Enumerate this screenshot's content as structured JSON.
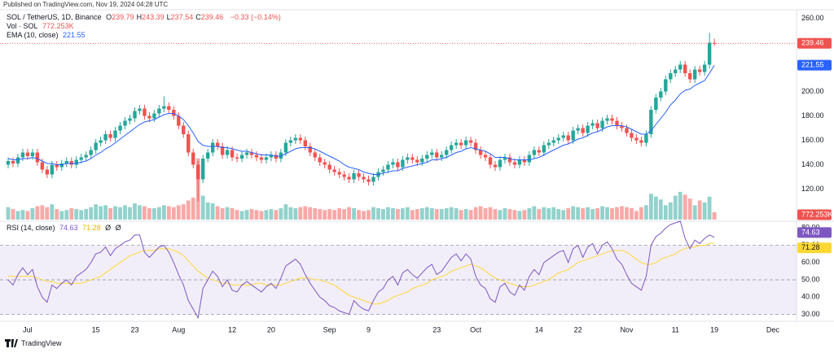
{
  "header": "Published on TradingView.com, Nov 19, 2024 04:28 UTC",
  "footer": "TradingView",
  "legend": {
    "symbol": "SOL / TetherUS, 1D, Binance",
    "ohlc": [
      {
        "k": "O",
        "v": "239.79"
      },
      {
        "k": "H",
        "v": "243.39"
      },
      {
        "k": "L",
        "v": "237.54"
      },
      {
        "k": "C",
        "v": "239.46"
      }
    ],
    "change": "−0.33 (−0.14%)",
    "volume_name": "Vol · SOL",
    "volume_value": "772.253K",
    "ema_name": "EMA (10, close)",
    "ema_value": "221.55",
    "rsi_name": "RSI (14, close)",
    "rsi_extra": [
      "Ø",
      "Ø"
    ]
  },
  "chart_data": {
    "type": "candlestick",
    "up_color": "#26a69a",
    "down_color": "#ef5350",
    "categories": [
      null,
      null,
      null,
      null,
      "Jul",
      null,
      null,
      null,
      null,
      null,
      null,
      null,
      null,
      null,
      null,
      null,
      null,
      null,
      "15",
      null,
      null,
      null,
      null,
      null,
      null,
      null,
      "23",
      null,
      null,
      null,
      null,
      null,
      null,
      null,
      null,
      "Aug",
      null,
      null,
      null,
      null,
      null,
      null,
      null,
      null,
      null,
      null,
      "12",
      null,
      null,
      null,
      null,
      null,
      null,
      null,
      "20",
      null,
      null,
      null,
      null,
      null,
      null,
      null,
      null,
      null,
      null,
      null,
      "Sep",
      null,
      null,
      null,
      null,
      null,
      null,
      null,
      "9",
      null,
      null,
      null,
      null,
      null,
      null,
      null,
      null,
      null,
      null,
      null,
      null,
      null,
      "23",
      null,
      null,
      null,
      null,
      null,
      null,
      null,
      "Oct",
      null,
      null,
      null,
      null,
      null,
      null,
      null,
      null,
      null,
      null,
      null,
      null,
      "14",
      null,
      null,
      null,
      null,
      null,
      null,
      null,
      "22",
      null,
      null,
      null,
      null,
      null,
      null,
      null,
      null,
      null,
      "Nov",
      null,
      null,
      null,
      null,
      null,
      null,
      null,
      null,
      null,
      "11",
      null,
      null,
      null,
      null,
      null,
      null,
      null,
      "19",
      null,
      null,
      null,
      null,
      null,
      null,
      null,
      null,
      null,
      null,
      null,
      "Dec"
    ],
    "open": [
      140,
      143,
      141,
      146,
      150,
      147,
      150,
      142,
      136,
      132,
      140,
      138,
      141,
      143,
      140,
      144,
      146,
      148,
      152,
      158,
      160,
      165,
      162,
      168,
      172,
      176,
      178,
      184,
      186,
      180,
      178,
      182,
      186,
      188,
      185,
      180,
      172,
      165,
      150,
      140,
      128,
      145,
      150,
      158,
      155,
      148,
      152,
      146,
      145,
      148,
      150,
      148,
      146,
      144,
      146,
      148,
      145,
      150,
      158,
      160,
      162,
      160,
      155,
      150,
      146,
      142,
      140,
      136,
      134,
      132,
      130,
      128,
      133,
      130,
      128,
      126,
      130,
      134,
      136,
      140,
      142,
      138,
      144,
      146,
      144,
      142,
      145,
      148,
      150,
      146,
      148,
      152,
      156,
      158,
      156,
      160,
      158,
      152,
      148,
      146,
      140,
      138,
      144,
      146,
      142,
      140,
      144,
      142,
      148,
      152,
      150,
      156,
      158,
      160,
      162,
      164,
      160,
      168,
      170,
      166,
      172,
      174,
      170,
      176,
      178,
      176,
      172,
      170,
      166,
      162,
      160,
      158,
      165,
      185,
      195,
      200,
      210,
      215,
      218,
      222,
      215,
      210,
      218,
      216,
      222,
      239.79,
      null,
      null,
      null,
      null,
      null,
      null,
      null,
      null,
      null,
      null,
      null,
      null
    ],
    "high": [
      146,
      146,
      149,
      153,
      153,
      153,
      153,
      145,
      139,
      143,
      143,
      144,
      146,
      146,
      147,
      149,
      151,
      155,
      161,
      163,
      168,
      168,
      171,
      175,
      179,
      181,
      187,
      189,
      189,
      183,
      185,
      189,
      196,
      191,
      188,
      183,
      175,
      168,
      153,
      143,
      148,
      153,
      161,
      161,
      158,
      155,
      155,
      149,
      151,
      153,
      153,
      151,
      149,
      149,
      151,
      151,
      153,
      161,
      163,
      165,
      165,
      163,
      158,
      153,
      149,
      145,
      143,
      139,
      137,
      135,
      133,
      136,
      136,
      133,
      131,
      133,
      137,
      139,
      143,
      145,
      145,
      147,
      149,
      149,
      147,
      148,
      151,
      153,
      153,
      151,
      155,
      159,
      161,
      161,
      163,
      163,
      161,
      155,
      151,
      149,
      143,
      147,
      149,
      149,
      145,
      147,
      147,
      151,
      155,
      155,
      159,
      161,
      163,
      165,
      167,
      167,
      171,
      173,
      173,
      175,
      177,
      177,
      179,
      181,
      181,
      179,
      175,
      173,
      169,
      165,
      163,
      168,
      188,
      198,
      203,
      213,
      218,
      221,
      225,
      225,
      218,
      221,
      221,
      225,
      248,
      243.39,
      null,
      null,
      null,
      null,
      null,
      null,
      null,
      null,
      null,
      null,
      null,
      null
    ],
    "low": [
      137,
      138,
      138,
      143,
      144,
      144,
      139,
      133,
      129,
      129,
      135,
      135,
      138,
      137,
      137,
      141,
      143,
      145,
      149,
      155,
      157,
      159,
      159,
      165,
      169,
      173,
      175,
      181,
      177,
      175,
      175,
      179,
      183,
      182,
      177,
      169,
      162,
      147,
      137,
      110,
      125,
      142,
      147,
      152,
      145,
      145,
      143,
      142,
      142,
      145,
      145,
      143,
      141,
      141,
      143,
      142,
      142,
      147,
      155,
      157,
      157,
      152,
      147,
      143,
      139,
      137,
      133,
      131,
      129,
      127,
      125,
      125,
      127,
      125,
      123,
      123,
      127,
      131,
      133,
      137,
      135,
      135,
      141,
      141,
      139,
      139,
      142,
      145,
      143,
      143,
      145,
      149,
      153,
      153,
      153,
      155,
      149,
      145,
      143,
      137,
      135,
      135,
      141,
      139,
      137,
      137,
      139,
      139,
      145,
      147,
      147,
      153,
      155,
      157,
      159,
      157,
      157,
      165,
      163,
      163,
      169,
      167,
      167,
      173,
      173,
      169,
      167,
      163,
      159,
      157,
      155,
      155,
      162,
      182,
      192,
      197,
      207,
      212,
      215,
      212,
      207,
      207,
      213,
      213,
      219,
      237.54,
      null,
      null,
      null,
      null,
      null,
      null,
      null,
      null,
      null,
      null,
      null,
      null
    ],
    "close": [
      143,
      141,
      146,
      150,
      147,
      150,
      142,
      136,
      132,
      140,
      138,
      141,
      143,
      140,
      144,
      146,
      148,
      152,
      158,
      160,
      165,
      162,
      168,
      172,
      176,
      178,
      184,
      186,
      180,
      178,
      182,
      186,
      188,
      185,
      180,
      172,
      165,
      150,
      140,
      128,
      145,
      150,
      158,
      155,
      148,
      152,
      146,
      145,
      148,
      150,
      148,
      146,
      144,
      146,
      148,
      145,
      150,
      158,
      160,
      162,
      160,
      155,
      150,
      146,
      142,
      140,
      136,
      134,
      132,
      130,
      128,
      133,
      130,
      128,
      126,
      130,
      134,
      136,
      140,
      142,
      138,
      144,
      146,
      144,
      142,
      145,
      148,
      150,
      146,
      148,
      152,
      156,
      158,
      156,
      160,
      158,
      152,
      148,
      146,
      140,
      138,
      144,
      146,
      142,
      140,
      144,
      142,
      148,
      152,
      150,
      156,
      158,
      160,
      162,
      164,
      160,
      168,
      170,
      166,
      172,
      174,
      170,
      176,
      178,
      176,
      172,
      170,
      166,
      162,
      160,
      158,
      165,
      185,
      195,
      200,
      210,
      215,
      218,
      222,
      215,
      210,
      218,
      216,
      222,
      240,
      239.46,
      null,
      null,
      null,
      null,
      null,
      null,
      null,
      null,
      null,
      null,
      null,
      null
    ],
    "ylim": [
      95,
      265
    ],
    "yticks": [
      {
        "value": 120,
        "label": "120.00"
      },
      {
        "value": 140,
        "label": "140.00"
      },
      {
        "value": 160,
        "label": "160.00"
      },
      {
        "value": 180,
        "label": "180.00"
      },
      {
        "value": 200,
        "label": "200.00"
      },
      {
        "value": 220,
        "label": "220.00"
      },
      {
        "value": 240,
        "label": "240.00"
      },
      {
        "value": 260,
        "label": "260.00"
      }
    ],
    "grid": false,
    "ema": {
      "color": "#2962ff",
      "values": [
        145,
        144,
        144,
        145,
        145,
        146,
        145,
        143,
        141,
        141,
        140,
        140,
        141,
        141,
        141,
        142,
        143,
        145,
        148,
        150,
        153,
        155,
        158,
        161,
        164,
        167,
        170,
        173,
        175,
        176,
        177,
        179,
        181,
        182,
        182,
        180,
        177,
        172,
        166,
        159,
        156,
        155,
        155,
        155,
        154,
        154,
        153,
        152,
        151,
        151,
        150,
        149,
        148,
        148,
        148,
        147,
        147,
        149,
        151,
        153,
        154,
        154,
        154,
        153,
        151,
        149,
        147,
        145,
        143,
        140,
        138,
        137,
        136,
        134,
        133,
        132,
        132,
        133,
        134,
        135,
        135,
        137,
        138,
        139,
        140,
        141,
        142,
        144,
        144,
        145,
        146,
        148,
        150,
        151,
        153,
        154,
        153,
        152,
        151,
        149,
        146,
        146,
        146,
        145,
        144,
        144,
        144,
        144,
        145,
        146,
        148,
        150,
        152,
        154,
        156,
        157,
        159,
        161,
        162,
        164,
        166,
        167,
        169,
        171,
        172,
        172,
        172,
        171,
        169,
        167,
        165,
        165,
        168,
        173,
        178,
        183,
        189,
        193,
        198,
        201,
        202,
        205,
        207,
        209,
        215,
        221.55,
        null,
        null,
        null,
        null,
        null,
        null,
        null,
        null,
        null,
        null,
        null,
        null
      ]
    },
    "volume": {
      "ylim": [
        0,
        8500
      ],
      "values": [
        1300,
        1100,
        900,
        1000,
        900,
        1200,
        1400,
        1500,
        1300,
        1600,
        1100,
        900,
        1000,
        1200,
        1100,
        1000,
        1100,
        1300,
        1600,
        1400,
        1500,
        1200,
        1400,
        1300,
        1500,
        1300,
        1700,
        1500,
        1400,
        1200,
        1200,
        1300,
        1500,
        1400,
        1300,
        1500,
        1600,
        2000,
        2300,
        6400,
        2500,
        1800,
        1700,
        1400,
        1200,
        1300,
        1200,
        1000,
        900,
        1000,
        1100,
        1000,
        900,
        1000,
        1100,
        1000,
        1200,
        1600,
        1300,
        1200,
        1300,
        1400,
        1300,
        1200,
        1100,
        1000,
        1100,
        1000,
        1200,
        1100,
        1300,
        1200,
        1000,
        900,
        1000,
        1300,
        1200,
        1100,
        1300,
        1200,
        1100,
        1200,
        1300,
        1000,
        1100,
        1200,
        1300,
        1200,
        1100,
        1100,
        1200,
        1300,
        1200,
        1000,
        1100,
        1000,
        1300,
        1400,
        1200,
        1300,
        1100,
        1000,
        1200,
        1100,
        1000,
        900,
        1000,
        1200,
        1400,
        1100,
        1300,
        1200,
        1300,
        1100,
        1000,
        1200,
        1400,
        1300,
        1200,
        1300,
        1100,
        1200,
        1400,
        1300,
        1200,
        1300,
        1400,
        1300,
        1200,
        900,
        1300,
        1500,
        2700,
        2400,
        2100,
        1500,
        1800,
        2500,
        2900,
        2600,
        2200,
        1500,
        2000,
        1800,
        2400,
        772.253,
        null,
        null,
        null,
        null,
        null,
        null,
        null,
        null,
        null,
        null,
        null,
        null
      ]
    },
    "rsi": {
      "color": "#7e57c2",
      "ma_color": "#fdd835",
      "ylim": [
        26,
        83
      ],
      "yticks": [
        {
          "value": 30,
          "label": "30.00"
        },
        {
          "value": 40,
          "label": "40.00"
        },
        {
          "value": 50,
          "label": "50.00"
        },
        {
          "value": 60,
          "label": "60.00"
        },
        {
          "value": 70,
          "label": "70.00"
        },
        {
          "value": 80,
          "label": "80.00"
        }
      ],
      "levels": [
        70,
        50,
        30
      ],
      "values": [
        50,
        47,
        53,
        57,
        53,
        56,
        46,
        40,
        37,
        47,
        45,
        48,
        50,
        47,
        52,
        54,
        56,
        60,
        65,
        66,
        69,
        64,
        68,
        70,
        72,
        73,
        76,
        76,
        66,
        63,
        66,
        69,
        70,
        66,
        60,
        53,
        47,
        38,
        33,
        28,
        45,
        50,
        55,
        52,
        46,
        50,
        44,
        43,
        47,
        49,
        47,
        45,
        43,
        46,
        48,
        45,
        51,
        58,
        60,
        62,
        59,
        53,
        48,
        44,
        40,
        38,
        35,
        34,
        32,
        31,
        30,
        38,
        35,
        33,
        32,
        38,
        43,
        45,
        50,
        52,
        47,
        54,
        56,
        53,
        51,
        54,
        57,
        59,
        53,
        55,
        59,
        63,
        65,
        61,
        65,
        62,
        52,
        47,
        45,
        39,
        37,
        46,
        48,
        43,
        41,
        47,
        44,
        52,
        56,
        53,
        60,
        62,
        64,
        66,
        67,
        60,
        68,
        70,
        63,
        69,
        71,
        65,
        70,
        72,
        68,
        62,
        59,
        53,
        48,
        46,
        44,
        52,
        70,
        75,
        77,
        80,
        82,
        83,
        84,
        74,
        68,
        73,
        71,
        74,
        76,
        74.63,
        null,
        null,
        null,
        null,
        null,
        null,
        null,
        null,
        null,
        null,
        null,
        null
      ],
      "ma_values": [
        52,
        52,
        52,
        52,
        52,
        52,
        51,
        50,
        49,
        49,
        48,
        48,
        48,
        48,
        48,
        48,
        49,
        50,
        51,
        52,
        54,
        56,
        58,
        60,
        62,
        64,
        65,
        66,
        67,
        67,
        67,
        68,
        68,
        68,
        67,
        66,
        64,
        61,
        58,
        55,
        53,
        51,
        50,
        49,
        48,
        48,
        47,
        47,
        47,
        47,
        47,
        48,
        48,
        47,
        47,
        47,
        47,
        48,
        49,
        50,
        51,
        51,
        51,
        50,
        50,
        49,
        48,
        47,
        45,
        43,
        41,
        40,
        39,
        38,
        37,
        36,
        36,
        37,
        38,
        40,
        41,
        42,
        43,
        45,
        46,
        47,
        48,
        50,
        51,
        52,
        53,
        55,
        56,
        57,
        58,
        59,
        58,
        57,
        55,
        53,
        51,
        50,
        49,
        48,
        47,
        46,
        46,
        46,
        47,
        48,
        49,
        50,
        52,
        54,
        55,
        56,
        58,
        60,
        61,
        62,
        63,
        64,
        65,
        66,
        67,
        67,
        67,
        66,
        64,
        62,
        60,
        59,
        59,
        60,
        62,
        63,
        64,
        65,
        67,
        68,
        69,
        69,
        70,
        70,
        71,
        71.28,
        null,
        null,
        null,
        null,
        null,
        null,
        null,
        null,
        null,
        null,
        null,
        null
      ]
    }
  }
}
